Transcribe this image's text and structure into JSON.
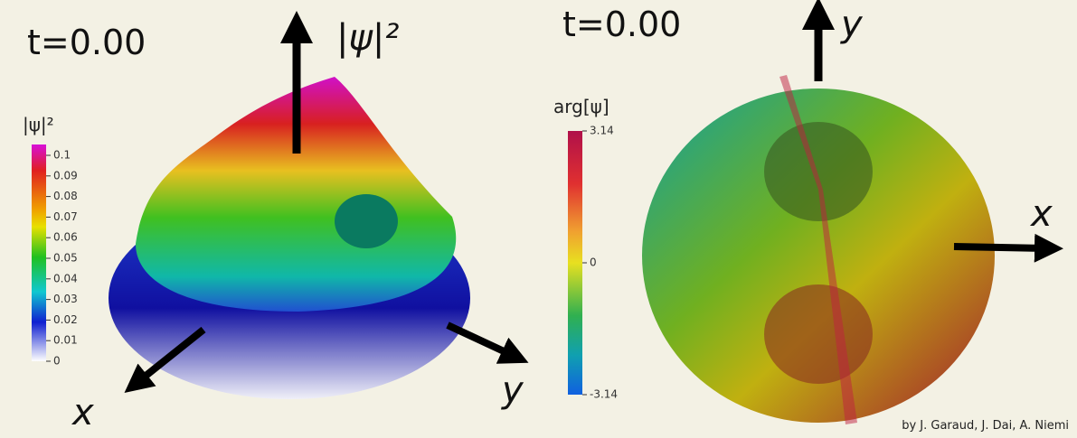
{
  "left_panel": {
    "time_label": "t=0.00",
    "axis_labels": {
      "z": "|ψ|²",
      "x": "x",
      "y": "y"
    },
    "colorbar": {
      "title": "|ψ|²",
      "ticks": [
        "0.1",
        "0.09",
        "0.08",
        "0.07",
        "0.06",
        "0.05",
        "0.04",
        "0.03",
        "0.02",
        "0.01",
        "0"
      ]
    }
  },
  "right_panel": {
    "time_label": "t=0.00",
    "axis_labels": {
      "y": "y",
      "x": "x"
    },
    "colorbar": {
      "title": "arg[ψ]",
      "ticks": [
        "3.14",
        "0",
        "-3.14"
      ]
    }
  },
  "credit": "by J. Garaud, J. Dai, A. Niemi"
}
